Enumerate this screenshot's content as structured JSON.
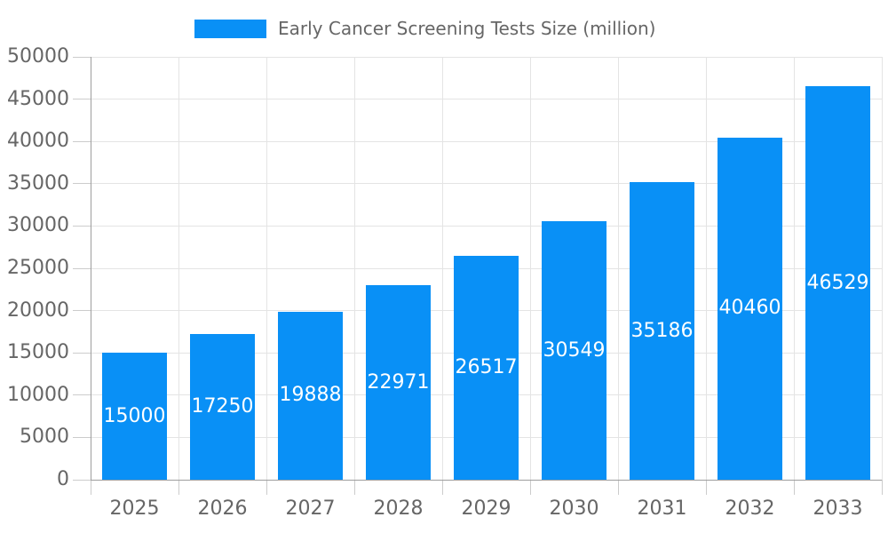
{
  "chart_data": {
    "type": "bar",
    "title": "Early Cancer Screening Tests Size (million)",
    "categories": [
      "2025",
      "2026",
      "2027",
      "2028",
      "2029",
      "2030",
      "2031",
      "2032",
      "2033"
    ],
    "values": [
      15000,
      17250,
      19888,
      22971,
      26517,
      30549,
      35186,
      40460,
      46529
    ],
    "series": [
      {
        "name": "Early Cancer Screening Tests Size (million)",
        "values": [
          15000,
          17250,
          19888,
          22971,
          26517,
          30549,
          35186,
          40460,
          46529
        ]
      }
    ],
    "xlabel": "",
    "ylabel": "",
    "ylim": [
      0,
      50000
    ],
    "y_tick_step": 5000,
    "y_tick_labels": [
      "0",
      "5000",
      "10000",
      "15000",
      "20000",
      "25000",
      "30000",
      "35000",
      "40000",
      "45000",
      "50000"
    ],
    "grid": true,
    "legend_position": "top",
    "value_labels_inside_bars": true
  },
  "colors": {
    "bar": "#0990f6",
    "bar_value_label": "#ffffff",
    "axis_text": "#666666",
    "legend_text": "#666666",
    "gridline": "#e4e4e4",
    "axis_line": "#9e9e9e",
    "tick_mark": "#cccccc",
    "background": "#ffffff"
  }
}
